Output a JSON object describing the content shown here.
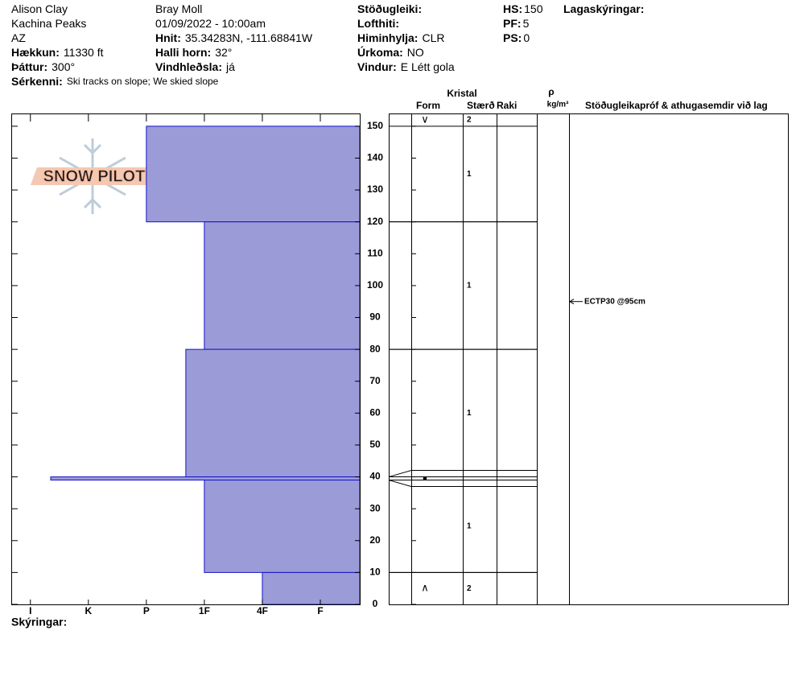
{
  "header": {
    "columns": [
      [
        {
          "value": "Alison Clay"
        },
        {
          "value": "Kachina Peaks"
        },
        {
          "value": "AZ"
        },
        {
          "label": "Hækkun:",
          "value": "11330 ft"
        },
        {
          "label": "Þáttur:",
          "value": "300°"
        },
        {
          "label": "Sérkenni:",
          "value": "Ski tracks on slope; We skied slope"
        }
      ],
      [
        {
          "value": "Bray Moll"
        },
        {
          "value": "01/09/2022 - 10:00am"
        },
        {
          "label": "Hnit:",
          "value": "35.34283N, -111.68841W"
        },
        {
          "label": "Halli horn:",
          "value": "32°"
        },
        {
          "label": "Vindhleðsla:",
          "value": "já"
        }
      ],
      [
        {
          "label": "Stöðugleiki:"
        },
        {
          "label": "Lofthiti:"
        },
        {
          "label": "Himinhylja:",
          "value": "CLR"
        },
        {
          "label": "Úrkoma:",
          "value": "NO"
        },
        {
          "label": "Vindur:",
          "value": "E Létt gola"
        }
      ],
      [
        {
          "label": "HS:",
          "value": "150"
        },
        {
          "label": "PF:",
          "value": "5"
        },
        {
          "label": "PS:",
          "value": "0"
        }
      ],
      [
        {
          "label": "Lagaskýringar:"
        }
      ]
    ]
  },
  "logo": "SNOW PILOT",
  "notes_label": "Skýringar:",
  "chart_data": {
    "type": "profile",
    "color": "#9b9bd7",
    "edge_color": "#1414c8",
    "ylim": [
      0,
      154
    ],
    "yticks": [
      0,
      10,
      20,
      30,
      40,
      50,
      60,
      70,
      80,
      90,
      100,
      110,
      120,
      130,
      140,
      150
    ],
    "xlim": [
      6.33,
      0.32
    ],
    "xticks": [
      {
        "value": 6,
        "label": "I"
      },
      {
        "value": 5,
        "label": "K"
      },
      {
        "value": 4,
        "label": "P"
      },
      {
        "value": 3,
        "label": "1F"
      },
      {
        "value": 2,
        "label": "4F"
      },
      {
        "value": 1,
        "label": "F"
      }
    ],
    "table_headers": {
      "crystal": "Kristal",
      "form": "Form",
      "size": "Stærð",
      "moisture": "Raki",
      "density_symbol": "ρ",
      "density_unit": "kg/m³",
      "comments": "Stöðugleikapróf & athugasemdir við lag"
    },
    "surface": {
      "form": "∨",
      "size": 2
    },
    "layers": [
      {
        "top": 150,
        "bottom": 120,
        "hardness": 4,
        "size": 1
      },
      {
        "top": 120,
        "bottom": 80,
        "hardness": 3,
        "size": 1
      },
      {
        "top": 80,
        "bottom": 40,
        "hardness": 3.32,
        "size": 1
      },
      {
        "top": 40,
        "bottom": 39,
        "hardness": 5.65,
        "form": "■"
      },
      {
        "top": 39,
        "bottom": 10,
        "hardness": 3,
        "size": 1
      },
      {
        "top": 10,
        "bottom": 0,
        "hardness": 2,
        "form": "∧",
        "size": 2
      }
    ],
    "tests": [
      {
        "depth": 95,
        "label": "ECTP30 @95cm"
      }
    ]
  }
}
